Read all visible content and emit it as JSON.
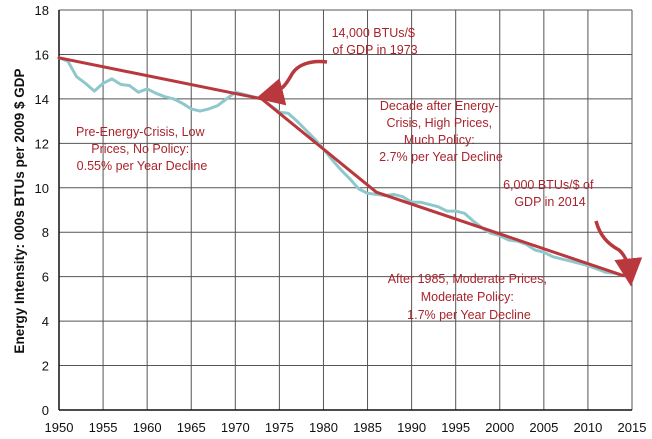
{
  "chart_data": {
    "type": "line",
    "title": "",
    "xlabel": "",
    "ylabel": "Energy Intensity: 000s BTUs per 2009 $ GDP",
    "xlim": [
      1950,
      2015
    ],
    "ylim": [
      0,
      18
    ],
    "x_ticks": [
      "1950",
      "1955",
      "1960",
      "1965",
      "1970",
      "1975",
      "1980",
      "1985",
      "1990",
      "1995",
      "2000",
      "2005",
      "2010",
      "2015"
    ],
    "y_ticks": [
      "0",
      "2",
      "4",
      "6",
      "8",
      "10",
      "12",
      "14",
      "16",
      "18"
    ],
    "grid": true,
    "colors": {
      "observed": "#8fc8cc",
      "trend": "#b9383e",
      "annotation_text": "#a8242c",
      "grid": "#555555"
    },
    "series": [
      {
        "role": "observed",
        "x": [
          1950,
          1951,
          1952,
          1953,
          1954,
          1955,
          1956,
          1957,
          1958,
          1959,
          1960,
          1961,
          1962,
          1963,
          1964,
          1965,
          1966,
          1967,
          1968,
          1969,
          1970,
          1971,
          1972,
          1973,
          1974,
          1975,
          1976,
          1977,
          1978,
          1979,
          1980,
          1981,
          1982,
          1983,
          1984,
          1985,
          1986,
          1987,
          1988,
          1989,
          1990,
          1991,
          1992,
          1993,
          1994,
          1995,
          1996,
          1997,
          1998,
          1999,
          2000,
          2001,
          2002,
          2003,
          2004,
          2005,
          2006,
          2007,
          2008,
          2009,
          2010,
          2011,
          2012,
          2013,
          2014
        ],
        "y": [
          15.85,
          15.7,
          15.0,
          14.7,
          14.35,
          14.7,
          14.9,
          14.65,
          14.6,
          14.3,
          14.45,
          14.25,
          14.1,
          14.0,
          13.8,
          13.55,
          13.45,
          13.55,
          13.7,
          14.0,
          14.3,
          14.2,
          14.1,
          14.0,
          13.7,
          13.4,
          13.35,
          13.0,
          12.6,
          12.2,
          11.75,
          11.25,
          10.8,
          10.4,
          9.95,
          9.75,
          9.7,
          9.65,
          9.7,
          9.6,
          9.35,
          9.35,
          9.25,
          9.15,
          8.95,
          8.95,
          8.85,
          8.5,
          8.2,
          7.95,
          7.85,
          7.65,
          7.6,
          7.45,
          7.2,
          7.1,
          6.9,
          6.8,
          6.7,
          6.6,
          6.5,
          6.35,
          6.2,
          6.15,
          6.05
        ]
      },
      {
        "role": "trend",
        "x": [
          1950,
          1973,
          1986,
          2014
        ],
        "y": [
          15.85,
          14.0,
          9.8,
          6.05
        ]
      }
    ],
    "annotations": [
      {
        "lines": [
          "14,000 BTUs/$",
          "of GDP in 1973"
        ]
      },
      {
        "lines": [
          "Decade after Energy-",
          "Crisis, High Prices,",
          "Much Policy:",
          "2.7% per Year Decline"
        ]
      },
      {
        "lines": [
          "Pre-Energy-Crisis, Low",
          "Prices, No Policy:",
          "0.55% per Year Decline"
        ]
      },
      {
        "lines": [
          "6,000 BTUs/$ of",
          "GDP in 2014"
        ]
      },
      {
        "lines": [
          "After 1985, Moderate Prices,",
          "Moderate Policy:",
          "1.7% per Year Decline"
        ]
      }
    ]
  }
}
